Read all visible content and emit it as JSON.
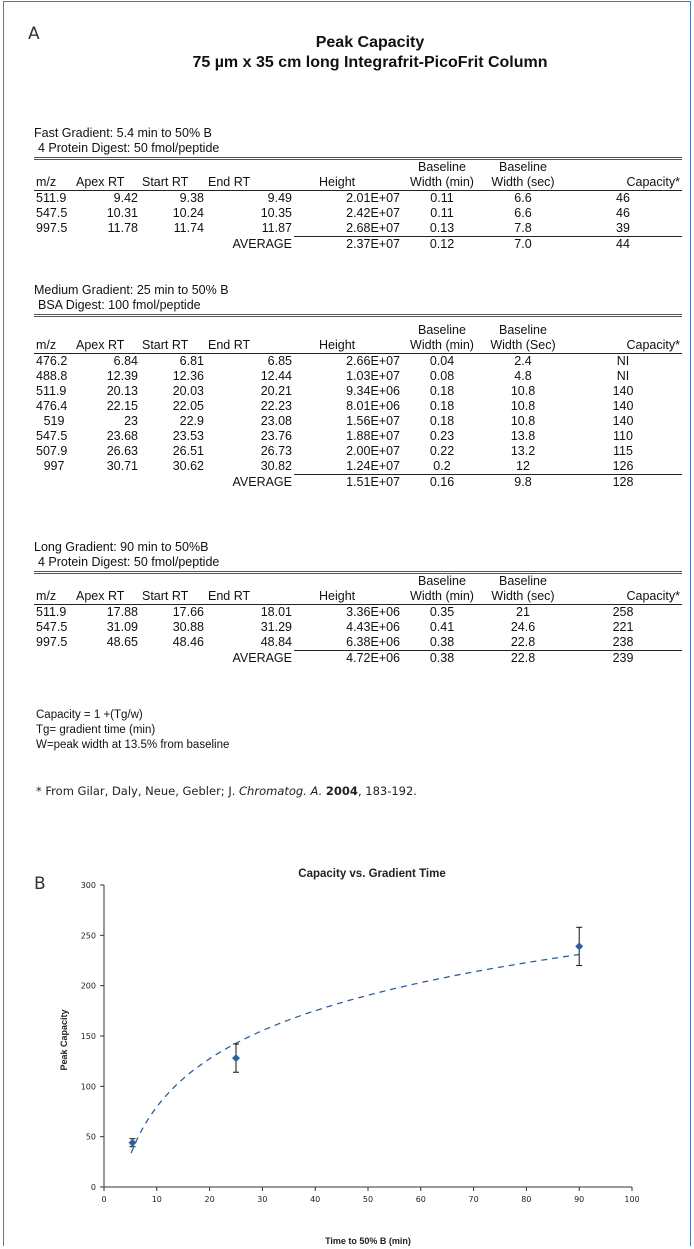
{
  "panel_a_label": "A",
  "panel_b_label": "B",
  "title_line1": "Peak Capacity",
  "title_line2": "75 µm x 35 cm long Integrafrit-PicoFrit Column",
  "tables": [
    {
      "caption1": "Fast Gradient: 5.4 min to 50% B",
      "caption2": "4 Protein Digest: 50 fmol/peptide",
      "headers_top": [
        "",
        "",
        "",
        "",
        "",
        "Baseline",
        "Baseline",
        ""
      ],
      "headers": [
        "m/z",
        "Apex RT",
        "Start RT",
        "End RT",
        "Height",
        "Width (min)",
        "Width (sec)",
        "Capacity*"
      ],
      "rows": [
        [
          "511.9",
          "9.42",
          "9.38",
          "9.49",
          "2.01E+07",
          "0.11",
          "6.6",
          "46"
        ],
        [
          "547.5",
          "10.31",
          "10.24",
          "10.35",
          "2.42E+07",
          "0.11",
          "6.6",
          "46"
        ],
        [
          "997.5",
          "11.78",
          "11.74",
          "11.87",
          "2.68E+07",
          "0.13",
          "7.8",
          "39"
        ]
      ],
      "average_label": "AVERAGE",
      "average": [
        "2.37E+07",
        "0.12",
        "7.0",
        "44"
      ]
    },
    {
      "caption1": "Medium Gradient: 25 min to 50% B",
      "caption2": "BSA Digest: 100 fmol/peptide",
      "headers_top": [
        "",
        "",
        "",
        "",
        "",
        "Baseline",
        "Baseline",
        ""
      ],
      "headers": [
        "m/z",
        "Apex RT",
        "Start RT",
        "End RT",
        "Height",
        "Width (min)",
        "Width (Sec)",
        "Capacity*"
      ],
      "rows": [
        [
          "476.2",
          "6.84",
          "6.81",
          "6.85",
          "2.66E+07",
          "0.04",
          "2.4",
          "NI"
        ],
        [
          "488.8",
          "12.39",
          "12.36",
          "12.44",
          "1.03E+07",
          "0.08",
          "4.8",
          "NI"
        ],
        [
          "511.9",
          "20.13",
          "20.03",
          "20.21",
          "9.34E+06",
          "0.18",
          "10.8",
          "140"
        ],
        [
          "476.4",
          "22.15",
          "22.05",
          "22.23",
          "8.01E+06",
          "0.18",
          "10.8",
          "140"
        ],
        [
          "519",
          "23",
          "22.9",
          "23.08",
          "1.56E+07",
          "0.18",
          "10.8",
          "140"
        ],
        [
          "547.5",
          "23.68",
          "23.53",
          "23.76",
          "1.88E+07",
          "0.23",
          "13.8",
          "110"
        ],
        [
          "507.9",
          "26.63",
          "26.51",
          "26.73",
          "2.00E+07",
          "0.22",
          "13.2",
          "115"
        ],
        [
          "997",
          "30.71",
          "30.62",
          "30.82",
          "1.24E+07",
          "0.2",
          "12",
          "126"
        ]
      ],
      "average_label": "AVERAGE",
      "average": [
        "1.51E+07",
        "0.16",
        "9.8",
        "128"
      ]
    },
    {
      "caption1": "Long Gradient: 90 min to 50%B",
      "caption2": "4 Protein Digest: 50 fmol/peptide",
      "headers_top": [
        "",
        "",
        "",
        "",
        "",
        "Baseline",
        "Baseline",
        ""
      ],
      "headers": [
        "m/z",
        "Apex RT",
        "Start RT",
        "End RT",
        "Height",
        "Width (min)",
        "Width (sec)",
        "Capacity*"
      ],
      "rows": [
        [
          "511.9",
          "17.88",
          "17.66",
          "18.01",
          "3.36E+06",
          "0.35",
          "21",
          "258"
        ],
        [
          "547.5",
          "31.09",
          "30.88",
          "31.29",
          "4.43E+06",
          "0.41",
          "24.6",
          "221"
        ],
        [
          "997.5",
          "48.65",
          "48.46",
          "48.84",
          "6.38E+06",
          "0.38",
          "22.8",
          "238"
        ]
      ],
      "average_label": "AVERAGE",
      "average": [
        "4.72E+06",
        "0.38",
        "22.8",
        "239"
      ]
    }
  ],
  "notes": [
    "Capacity = 1 +(Tg/w)",
    "Tg= gradient time (min)",
    "W=peak width at 13.5% from baseline"
  ],
  "reference": {
    "prefix": "* From Gilar, Daly, Neue, Gebler; J. ",
    "journal": "Chromatog. A.",
    "year": "2004",
    "suffix": ", 183-192."
  },
  "chart_data": {
    "type": "scatter",
    "title": "Capacity vs. Gradient Time",
    "xlabel": "Time to 50% B (min)",
    "ylabel": "Peak Capacity",
    "xlim": [
      0,
      100
    ],
    "ylim": [
      0,
      300
    ],
    "xticks": [
      0,
      10,
      20,
      30,
      40,
      50,
      60,
      70,
      80,
      90,
      100
    ],
    "yticks": [
      0,
      50,
      100,
      150,
      200,
      250,
      300
    ],
    "points": [
      {
        "x": 5.4,
        "y": 44,
        "err": 4
      },
      {
        "x": 25,
        "y": 128,
        "err": 14
      },
      {
        "x": 90,
        "y": 239,
        "err": 19
      }
    ],
    "trendline": "logarithmic",
    "marker_color": "#2f5f9e",
    "trend_color": "#2f5f9e"
  }
}
